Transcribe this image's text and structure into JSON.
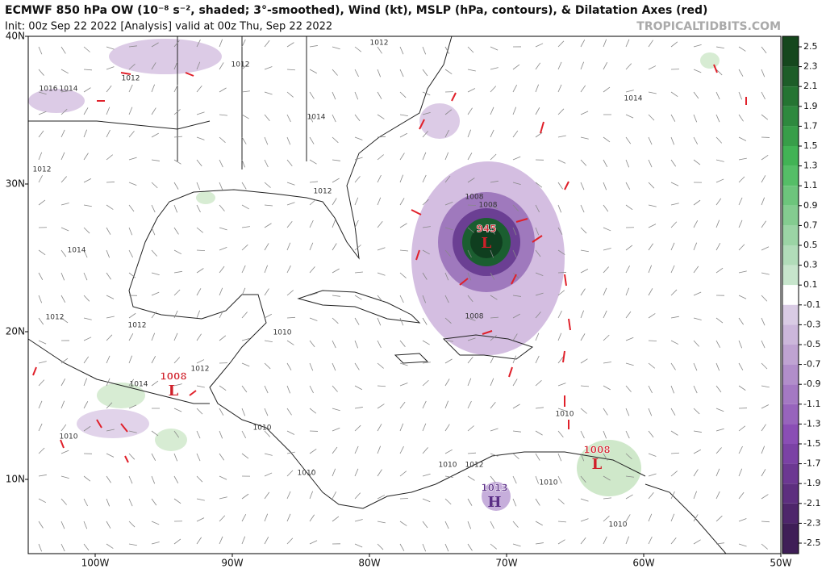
{
  "header": {
    "title": "ECMWF 850 hPa OW (10⁻⁸ s⁻², shaded; 3°-smoothed), Wind (kt), MSLP (hPa, contours), & Dilatation Axes (red)",
    "subtitle": "Init: 00z Sep 22 2022   [Analysis]   valid at 00z Thu, Sep 22 2022",
    "source": "TROPICALTIDBITS.COM"
  },
  "map": {
    "lat_labels": [
      "40N",
      "30N",
      "20N",
      "10N"
    ],
    "lon_labels": [
      "100W",
      "90W",
      "80W",
      "70W",
      "60W",
      "50W"
    ],
    "pressure_centers": [
      {
        "value": "945",
        "letter": "L"
      },
      {
        "value": "1008",
        "letter": "L"
      },
      {
        "value": "1008",
        "letter": "L"
      },
      {
        "value": "1013",
        "letter": "H"
      }
    ],
    "contour_labels": [
      "1012",
      "1012",
      "1012",
      "1016",
      "1014",
      "1014",
      "1014",
      "1012",
      "1012",
      "1014",
      "1008",
      "1008",
      "1008",
      "1012",
      "1012",
      "1010",
      "1012",
      "1014",
      "1010",
      "1010",
      "1010",
      "1010",
      "1010",
      "1012",
      "1010",
      "1010"
    ]
  },
  "colorbar": {
    "ticks": [
      2.5,
      2.3,
      2.1,
      1.9,
      1.7,
      1.5,
      1.3,
      1.1,
      0.9,
      0.7,
      0.5,
      0.3,
      0.1,
      -0.1,
      -0.3,
      -0.5,
      -0.7,
      -0.9,
      -1.1,
      -1.3,
      -1.5,
      -1.7,
      -1.9,
      -2.1,
      -2.3,
      -2.5
    ]
  }
}
